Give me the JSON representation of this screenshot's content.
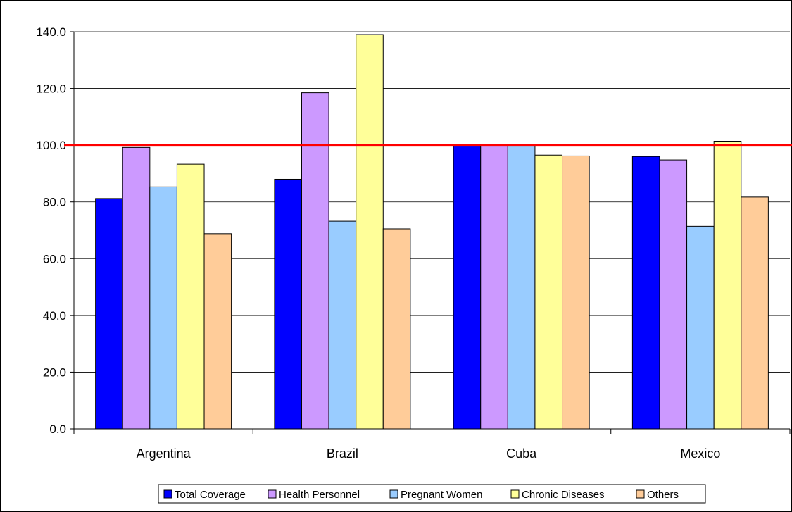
{
  "chart_data": {
    "type": "bar",
    "title": "",
    "xlabel": "",
    "ylabel": "",
    "ylim": [
      0,
      140
    ],
    "yticks": [
      "0.0",
      "20.0",
      "40.0",
      "60.0",
      "80.0",
      "100.0",
      "120.0",
      "140.0"
    ],
    "ytick_values": [
      0,
      20,
      40,
      60,
      80,
      100,
      120,
      140
    ],
    "grid": true,
    "legend_position": "bottom",
    "categories": [
      "Argentina",
      "Brazil",
      "Cuba",
      "Mexico"
    ],
    "series": [
      {
        "name": "Total Coverage",
        "color": "#0000ff",
        "values": [
          81.2,
          88.0,
          100.0,
          96.0
        ]
      },
      {
        "name": "Health Personnel",
        "color": "#cc99ff",
        "values": [
          99.2,
          118.5,
          100.0,
          94.8
        ]
      },
      {
        "name": "Pregnant Women",
        "color": "#99ccff",
        "values": [
          85.3,
          73.2,
          100.0,
          71.4
        ]
      },
      {
        "name": "Chronic Diseases",
        "color": "#ffff99",
        "values": [
          93.3,
          139.0,
          96.5,
          101.4
        ]
      },
      {
        "name": "Others",
        "color": "#ffcc99",
        "values": [
          68.8,
          70.5,
          96.2,
          81.7
        ]
      }
    ],
    "reference_line": {
      "value": 100,
      "color": "#ff0000"
    }
  }
}
